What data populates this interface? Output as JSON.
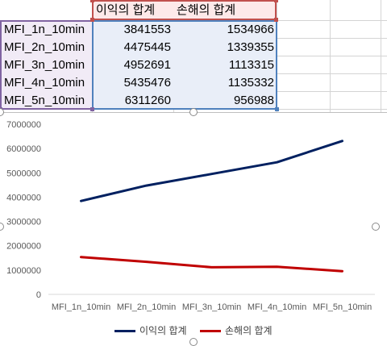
{
  "sheet": {
    "headers": [
      "이익의 합계",
      "손해의 합계"
    ],
    "rows": [
      {
        "label": "MFI_1n_10min",
        "profit": "3841553",
        "loss": "1534966"
      },
      {
        "label": "MFI_2n_10min",
        "profit": "4475445",
        "loss": "1339355"
      },
      {
        "label": "MFI_3n_10min",
        "profit": "4952691",
        "loss": "1113315"
      },
      {
        "label": "MFI_4n_10min",
        "profit": "5435476",
        "loss": "1135332"
      },
      {
        "label": "MFI_5n_10min",
        "profit": "6311260",
        "loss": "956988"
      }
    ],
    "colors": {
      "header_sel": "#c0504d",
      "label_sel": "#8064a2",
      "value_sel": "#4f81bd"
    }
  },
  "chart_data": {
    "type": "line",
    "categories": [
      "MFI_1n_10min",
      "MFI_2n_10min",
      "MFI_3n_10min",
      "MFI_4n_10min",
      "MFI_5n_10min"
    ],
    "series": [
      {
        "name": "이익의 합계",
        "color": "#002060",
        "values": [
          3841553,
          4475445,
          4952691,
          5435476,
          6311260
        ]
      },
      {
        "name": "손해의 합계",
        "color": "#c00000",
        "values": [
          1534966,
          1339355,
          1113315,
          1135332,
          956988
        ]
      }
    ],
    "title": "",
    "xlabel": "",
    "ylabel": "",
    "ylim": [
      0,
      7000000
    ],
    "yticks": [
      "0",
      "1000000",
      "2000000",
      "3000000",
      "4000000",
      "5000000",
      "6000000",
      "7000000"
    ],
    "grid": false,
    "legend": "bottom"
  }
}
